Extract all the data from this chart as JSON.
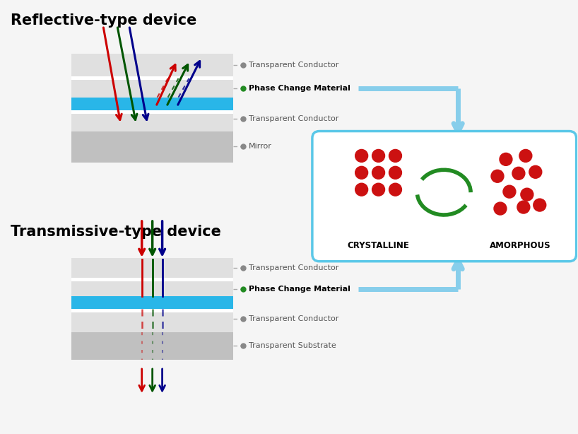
{
  "title_reflective": "Reflective-type device",
  "title_transmissive": "Transmissive-type device",
  "bg_color": "#f5f5f5",
  "layer_gray_light": "#e0e0e0",
  "layer_gray_mid": "#c0c0c0",
  "layer_blue": "#29b6e8",
  "arrow_red": "#cc0000",
  "arrow_green": "#005500",
  "arrow_blue": "#00008b",
  "label_green": "#228B22",
  "dot_green": "#228B22",
  "box_blue": "#5bc8e8",
  "dot_red": "#cc1111",
  "arrow_cyan": "#87ceeb",
  "gray_dot": "#888888",
  "reflective_labels": [
    "Transparent Conductor",
    "Phase Change Material",
    "Transparent Conductor",
    "Mirror"
  ],
  "transmissive_labels": [
    "Transparent Conductor",
    "Phase Change Material",
    "Transparent Conductor",
    "Transparent Substrate"
  ],
  "crystalline_text": "CRYSTALLINE",
  "amorphous_text": "AMORPHOUS"
}
